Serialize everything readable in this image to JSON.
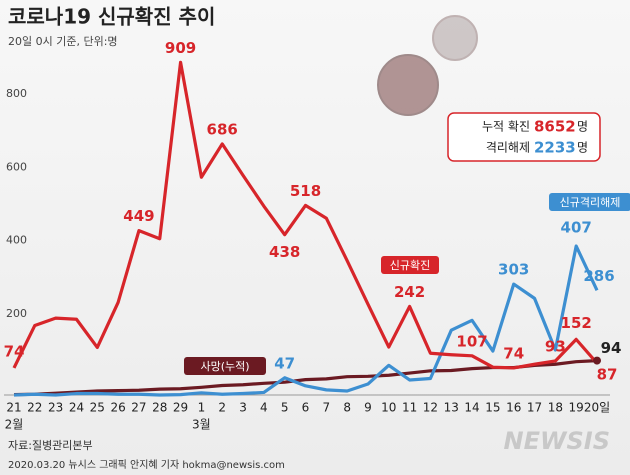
{
  "chart_data": {
    "type": "line",
    "title": "코로나19 신규확진 추이",
    "subtitle": "20일 0시 기준, 단위:명",
    "categories": [
      "21",
      "22",
      "23",
      "24",
      "25",
      "26",
      "27",
      "28",
      "29",
      "1",
      "2",
      "3",
      "4",
      "5",
      "6",
      "7",
      "8",
      "9",
      "10",
      "11",
      "12",
      "13",
      "14",
      "15",
      "16",
      "17",
      "18",
      "19",
      "20일"
    ],
    "month_labels": [
      "2월",
      null,
      null,
      null,
      null,
      null,
      null,
      null,
      null,
      "3월",
      null,
      null,
      null,
      null,
      null,
      null,
      null,
      null,
      null,
      null,
      null,
      null,
      null,
      null,
      null,
      null,
      null,
      null,
      null
    ],
    "series": [
      {
        "name": "신규확진",
        "color": "#d7252a",
        "values": [
          74,
          190,
          210,
          207,
          130,
          253,
          449,
          427,
          909,
          595,
          686,
          600,
          516,
          438,
          518,
          483,
          367,
          248,
          131,
          242,
          114,
          110,
          107,
          76,
          74,
          84,
          93,
          152,
          87
        ],
        "value_labels": [
          "74",
          null,
          null,
          null,
          null,
          null,
          "449",
          null,
          "909",
          null,
          "686",
          null,
          null,
          "438",
          "518",
          null,
          null,
          null,
          null,
          "242",
          null,
          null,
          "107",
          null,
          "74",
          null,
          "93",
          "152",
          "87"
        ]
      },
      {
        "name": "신규격리해제",
        "color": "#3d8fd1",
        "values": [
          0,
          2,
          0,
          4,
          4,
          2,
          2,
          0,
          1,
          6,
          2,
          4,
          7,
          47,
          25,
          14,
          11,
          30,
          81,
          41,
          45,
          177,
          204,
          120,
          303,
          264,
          123,
          407,
          286
        ],
        "value_labels": [
          null,
          null,
          null,
          null,
          null,
          null,
          null,
          null,
          null,
          null,
          null,
          null,
          null,
          "47",
          null,
          null,
          null,
          null,
          null,
          null,
          null,
          null,
          null,
          null,
          "303",
          null,
          null,
          "407",
          "286"
        ]
      },
      {
        "name": "사망(누적)",
        "color": "#6b1a22",
        "values": [
          1,
          2,
          5,
          8,
          11,
          12,
          13,
          16,
          17,
          21,
          26,
          28,
          32,
          35,
          42,
          44,
          50,
          51,
          54,
          60,
          66,
          67,
          72,
          75,
          75,
          81,
          84,
          91,
          94
        ],
        "value_labels": [
          null,
          null,
          null,
          null,
          null,
          null,
          null,
          null,
          null,
          null,
          null,
          null,
          null,
          null,
          null,
          null,
          null,
          null,
          null,
          null,
          null,
          null,
          null,
          null,
          null,
          null,
          null,
          null,
          "94"
        ]
      }
    ],
    "ylim": [
      0,
      1000
    ],
    "yticks": [
      200,
      400,
      600,
      800
    ],
    "grid": false,
    "summary": [
      {
        "label": "누적 확진",
        "value": 8652,
        "unit": "명",
        "color": "#d7252a"
      },
      {
        "label": "격리해제",
        "value": 2233,
        "unit": "명",
        "color": "#3d8fd1"
      }
    ],
    "source": "자료:질병관리본부",
    "credit": "2020.03.20 뉴시스 그래픽 안지혜 기자 hokma@newsis.com",
    "logo": "NEWSIS"
  }
}
